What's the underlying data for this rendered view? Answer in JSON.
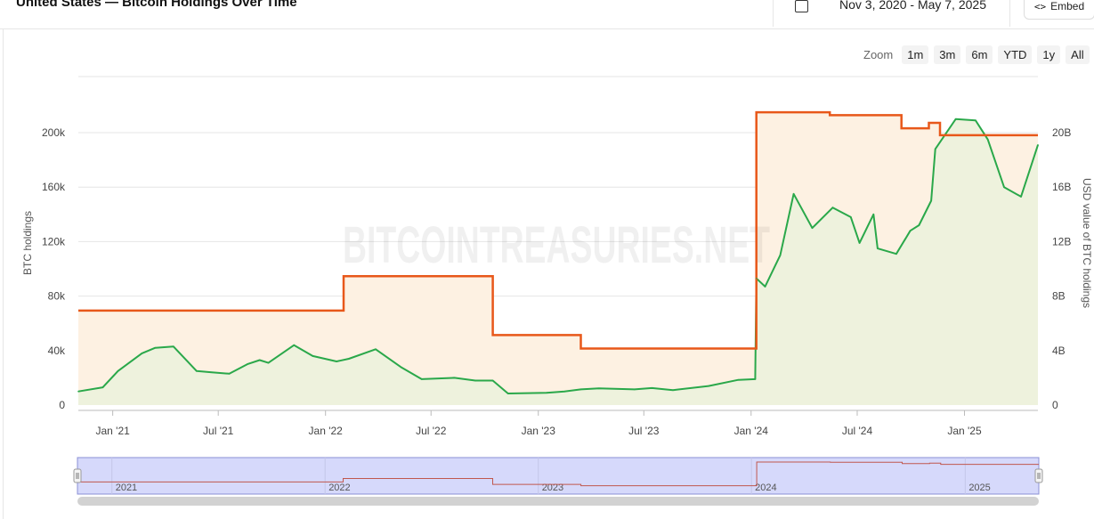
{
  "header": {
    "title": "United States — Bitcoin Holdings Over Time",
    "date_range": "Nov 3, 2020 - May 7, 2025",
    "embed_label": "Embed"
  },
  "zoom": {
    "label": "Zoom",
    "buttons": [
      "1m",
      "3m",
      "6m",
      "YTD",
      "1y",
      "All"
    ]
  },
  "watermark": "BITCOINTREASURIES.NET",
  "chart_data": {
    "type": "line",
    "x_ticks": [
      "Jan '21",
      "Jul '21",
      "Jan '22",
      "Jul '22",
      "Jan '23",
      "Jul '23",
      "Jan '24",
      "Jul '24",
      "Jan '25"
    ],
    "y_left": {
      "label": "BTC holdings",
      "ticks": [
        "0",
        "40k",
        "80k",
        "120k",
        "160k",
        "200k"
      ],
      "range": [
        0,
        200000
      ]
    },
    "y_right": {
      "label": "USD value of BTC holdings",
      "ticks": [
        "0",
        "4B",
        "8B",
        "12B",
        "16B",
        "20B"
      ],
      "range": [
        0,
        20000000000
      ]
    },
    "navigator_years": [
      "2021",
      "2022",
      "2023",
      "2024",
      "2025"
    ],
    "colors": {
      "holdings": "#e8581a",
      "holdings_fill": "#fdf1e2",
      "value": "#2aa84a",
      "value_fill": "#eef2dd",
      "navigator_bg": "#d6d9fb"
    },
    "series": [
      {
        "axis": "left",
        "x": [
          "2020-11-03",
          "2022-02-01",
          "2022-10-15",
          "2023-03-15",
          "2024-01-10",
          "2024-05-15",
          "2024-09-15",
          "2024-11-01",
          "2024-11-20",
          "2025-05-07"
        ],
        "values": [
          69370,
          94600,
          51350,
          41500,
          215000,
          212800,
          203200,
          207200,
          198100,
          198100
        ]
      },
      {
        "axis": "right",
        "x": [
          "2020-11-03",
          "2020-12-15",
          "2021-01-10",
          "2021-02-20",
          "2021-03-15",
          "2021-04-15",
          "2021-05-25",
          "2021-06-20",
          "2021-07-20",
          "2021-08-20",
          "2021-09-10",
          "2021-09-25",
          "2021-11-08",
          "2021-12-10",
          "2022-01-20",
          "2022-02-10",
          "2022-03-28",
          "2022-05-10",
          "2022-06-15",
          "2022-08-10",
          "2022-09-15",
          "2022-10-15",
          "2022-11-10",
          "2023-01-15",
          "2023-02-15",
          "2023-03-15",
          "2023-04-15",
          "2023-06-15",
          "2023-07-15",
          "2023-08-20",
          "2023-10-20",
          "2023-12-10",
          "2024-01-08",
          "2024-01-10",
          "2024-01-25",
          "2024-02-20",
          "2024-03-14",
          "2024-04-15",
          "2024-05-20",
          "2024-06-20",
          "2024-07-05",
          "2024-07-29",
          "2024-08-05",
          "2024-09-06",
          "2024-09-30",
          "2024-10-15",
          "2024-11-05",
          "2024-11-12",
          "2024-12-17",
          "2025-01-20",
          "2025-02-10",
          "2025-03-10",
          "2025-04-08",
          "2025-05-07"
        ],
        "values": [
          1000000000,
          1300000000,
          2500000000,
          3800000000,
          4200000000,
          4300000000,
          2500000000,
          2400000000,
          2300000000,
          3000000000,
          3300000000,
          3100000000,
          4400000000,
          3600000000,
          3200000000,
          3400000000,
          4100000000,
          2800000000,
          1900000000,
          2000000000,
          1800000000,
          1800000000,
          850000000,
          900000000,
          1000000000,
          1150000000,
          1220000000,
          1150000000,
          1250000000,
          1100000000,
          1400000000,
          1850000000,
          1900000000,
          9300000000,
          8700000000,
          11000000000,
          15500000000,
          13000000000,
          14500000000,
          13800000000,
          11900000000,
          14000000000,
          11500000000,
          11100000000,
          12800000000,
          13200000000,
          15000000000,
          18800000000,
          21000000000,
          20900000000,
          19500000000,
          16000000000,
          15300000000,
          19100000000
        ]
      }
    ]
  }
}
